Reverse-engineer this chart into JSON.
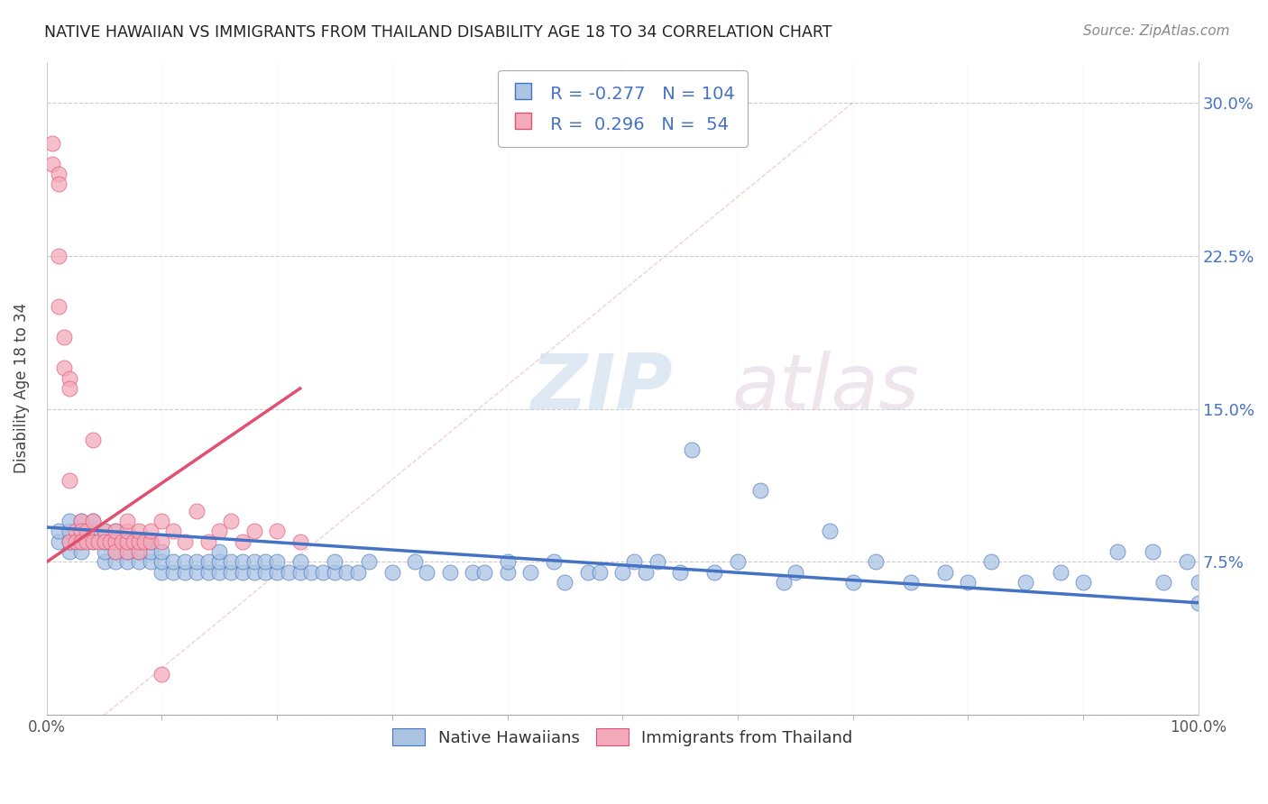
{
  "title": "NATIVE HAWAIIAN VS IMMIGRANTS FROM THAILAND DISABILITY AGE 18 TO 34 CORRELATION CHART",
  "source": "Source: ZipAtlas.com",
  "ylabel": "Disability Age 18 to 34",
  "y_ticks": [
    0.0,
    0.075,
    0.15,
    0.225,
    0.3
  ],
  "y_tick_labels_right": [
    "",
    "7.5%",
    "15.0%",
    "22.5%",
    "30.0%"
  ],
  "x_range": [
    0.0,
    1.0
  ],
  "y_range": [
    0.0,
    0.32
  ],
  "r_blue": -0.277,
  "n_blue": 104,
  "r_pink": 0.296,
  "n_pink": 54,
  "blue_color": "#aac4e2",
  "pink_color": "#f4aabb",
  "line_blue": "#4472c4",
  "line_pink": "#e05070",
  "legend_blue_label": "Native Hawaiians",
  "legend_pink_label": "Immigrants from Thailand",
  "watermark_zip": "ZIP",
  "watermark_atlas": "atlas",
  "blue_scatter_x": [
    0.01,
    0.01,
    0.02,
    0.02,
    0.02,
    0.02,
    0.03,
    0.03,
    0.03,
    0.03,
    0.04,
    0.04,
    0.04,
    0.05,
    0.05,
    0.05,
    0.05,
    0.06,
    0.06,
    0.06,
    0.06,
    0.07,
    0.07,
    0.07,
    0.08,
    0.08,
    0.08,
    0.09,
    0.09,
    0.09,
    0.1,
    0.1,
    0.1,
    0.11,
    0.11,
    0.12,
    0.12,
    0.13,
    0.13,
    0.14,
    0.14,
    0.15,
    0.15,
    0.15,
    0.16,
    0.16,
    0.17,
    0.17,
    0.18,
    0.18,
    0.19,
    0.19,
    0.2,
    0.2,
    0.21,
    0.22,
    0.22,
    0.23,
    0.24,
    0.25,
    0.25,
    0.26,
    0.27,
    0.28,
    0.3,
    0.32,
    0.33,
    0.35,
    0.37,
    0.38,
    0.4,
    0.4,
    0.42,
    0.44,
    0.45,
    0.47,
    0.48,
    0.5,
    0.51,
    0.52,
    0.53,
    0.55,
    0.56,
    0.58,
    0.6,
    0.62,
    0.64,
    0.65,
    0.68,
    0.7,
    0.72,
    0.75,
    0.78,
    0.8,
    0.82,
    0.85,
    0.88,
    0.9,
    0.93,
    0.96,
    0.97,
    0.99,
    1.0,
    1.0
  ],
  "blue_scatter_y": [
    0.085,
    0.09,
    0.08,
    0.085,
    0.09,
    0.095,
    0.08,
    0.085,
    0.09,
    0.095,
    0.085,
    0.09,
    0.095,
    0.075,
    0.08,
    0.085,
    0.09,
    0.075,
    0.08,
    0.085,
    0.09,
    0.075,
    0.08,
    0.085,
    0.075,
    0.08,
    0.085,
    0.075,
    0.08,
    0.085,
    0.07,
    0.075,
    0.08,
    0.07,
    0.075,
    0.07,
    0.075,
    0.07,
    0.075,
    0.07,
    0.075,
    0.07,
    0.075,
    0.08,
    0.07,
    0.075,
    0.07,
    0.075,
    0.07,
    0.075,
    0.07,
    0.075,
    0.07,
    0.075,
    0.07,
    0.07,
    0.075,
    0.07,
    0.07,
    0.07,
    0.075,
    0.07,
    0.07,
    0.075,
    0.07,
    0.075,
    0.07,
    0.07,
    0.07,
    0.07,
    0.07,
    0.075,
    0.07,
    0.075,
    0.065,
    0.07,
    0.07,
    0.07,
    0.075,
    0.07,
    0.075,
    0.07,
    0.13,
    0.07,
    0.075,
    0.11,
    0.065,
    0.07,
    0.09,
    0.065,
    0.075,
    0.065,
    0.07,
    0.065,
    0.075,
    0.065,
    0.07,
    0.065,
    0.08,
    0.08,
    0.065,
    0.075,
    0.065,
    0.055
  ],
  "pink_scatter_x": [
    0.005,
    0.005,
    0.01,
    0.01,
    0.01,
    0.01,
    0.015,
    0.015,
    0.02,
    0.02,
    0.02,
    0.02,
    0.025,
    0.025,
    0.03,
    0.03,
    0.03,
    0.035,
    0.035,
    0.04,
    0.04,
    0.04,
    0.045,
    0.05,
    0.05,
    0.055,
    0.06,
    0.06,
    0.06,
    0.065,
    0.07,
    0.07,
    0.07,
    0.07,
    0.075,
    0.08,
    0.08,
    0.08,
    0.085,
    0.09,
    0.09,
    0.1,
    0.1,
    0.11,
    0.12,
    0.13,
    0.14,
    0.15,
    0.16,
    0.17,
    0.18,
    0.2,
    0.22,
    0.1
  ],
  "pink_scatter_y": [
    0.28,
    0.27,
    0.265,
    0.26,
    0.225,
    0.2,
    0.185,
    0.17,
    0.165,
    0.16,
    0.115,
    0.085,
    0.09,
    0.085,
    0.095,
    0.09,
    0.085,
    0.09,
    0.085,
    0.135,
    0.095,
    0.085,
    0.085,
    0.09,
    0.085,
    0.085,
    0.085,
    0.08,
    0.09,
    0.085,
    0.08,
    0.085,
    0.09,
    0.095,
    0.085,
    0.08,
    0.085,
    0.09,
    0.085,
    0.085,
    0.09,
    0.085,
    0.095,
    0.09,
    0.085,
    0.1,
    0.085,
    0.09,
    0.095,
    0.085,
    0.09,
    0.09,
    0.085,
    0.02
  ],
  "blue_line_x": [
    0.0,
    1.0
  ],
  "blue_line_y": [
    0.092,
    0.055
  ],
  "pink_line_x": [
    0.0,
    0.22
  ],
  "pink_line_y": [
    0.075,
    0.16
  ]
}
